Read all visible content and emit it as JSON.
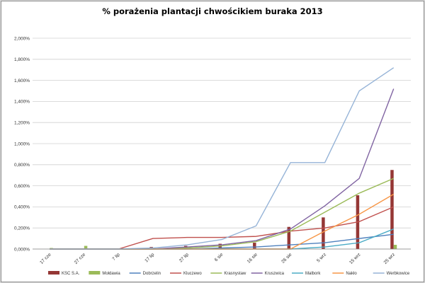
{
  "chart_data": {
    "type": "line",
    "title": "% porażenia plantacji chwościkiem buraka 2013",
    "categories": [
      "17 cze",
      "27 cze",
      "7 lip",
      "17 lip",
      "27 lip",
      "6 sie",
      "16 sie",
      "26 sie",
      "5 wrz",
      "15 wrz",
      "25 wrz"
    ],
    "ylim": [
      0,
      2.0
    ],
    "yticks": [
      "0,000%",
      "0,200%",
      "0,400%",
      "0,600%",
      "0,800%",
      "1,000%",
      "1,200%",
      "1,400%",
      "1,600%",
      "1,800%",
      "2,000%"
    ],
    "grid": true,
    "legend_position": "bottom",
    "series": [
      {
        "name": "KSC S.A.",
        "kind": "bar",
        "color": "#953735",
        "values": [
          0.0,
          0.0,
          0.0,
          0.02,
          0.03,
          0.05,
          0.06,
          0.21,
          0.3,
          0.51,
          0.75
        ]
      },
      {
        "name": "Mołdawia",
        "kind": "bar",
        "color": "#9bbb59",
        "values": [
          0.01,
          0.03,
          0.0,
          0.0,
          0.0,
          0.0,
          0.0,
          0.0,
          0.0,
          0.0,
          0.04
        ]
      },
      {
        "name": "Dobrzelin",
        "kind": "line",
        "color": "#4f81bd",
        "values": [
          0.0,
          0.0,
          0.0,
          0.0,
          0.0,
          0.01,
          0.02,
          0.04,
          0.06,
          0.1,
          0.14
        ]
      },
      {
        "name": "Kluczewo",
        "kind": "line",
        "color": "#c0504d",
        "values": [
          0.0,
          0.0,
          0.0,
          0.1,
          0.11,
          0.11,
          0.12,
          0.17,
          0.2,
          0.26,
          0.4
        ]
      },
      {
        "name": "Krasnystaw",
        "kind": "line",
        "color": "#9bbb59",
        "values": [
          0.0,
          0.0,
          0.0,
          0.0,
          0.01,
          0.03,
          0.07,
          0.17,
          0.35,
          0.53,
          0.67
        ]
      },
      {
        "name": "Kruszwica",
        "kind": "line",
        "color": "#8064a2",
        "values": [
          0.0,
          0.0,
          0.0,
          0.0,
          0.02,
          0.04,
          0.08,
          0.19,
          0.41,
          0.67,
          1.52
        ]
      },
      {
        "name": "Malbork",
        "kind": "line",
        "color": "#4bacc6",
        "values": [
          0.0,
          0.0,
          0.0,
          0.0,
          0.0,
          0.0,
          0.0,
          0.0,
          0.02,
          0.06,
          0.19
        ]
      },
      {
        "name": "Nakło",
        "kind": "line",
        "color": "#f79646",
        "values": [
          0.0,
          0.0,
          0.0,
          0.0,
          0.0,
          0.0,
          0.0,
          0.0,
          0.17,
          0.33,
          0.52
        ]
      },
      {
        "name": "Werbkowice",
        "kind": "line",
        "color": "#95b3d7",
        "values": [
          0.0,
          0.0,
          0.0,
          0.01,
          0.04,
          0.09,
          0.22,
          0.82,
          0.82,
          1.5,
          1.72
        ]
      }
    ]
  }
}
